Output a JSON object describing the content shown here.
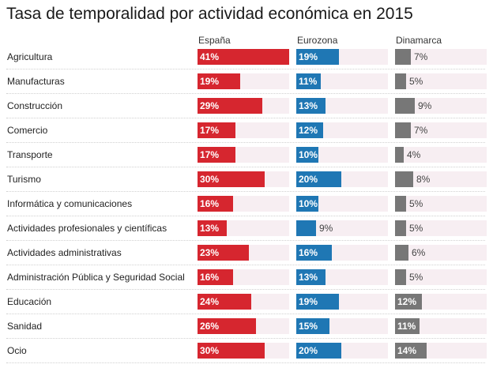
{
  "title": "Tasa de temporalidad por actividad económica en 2015",
  "chart_data": {
    "type": "bar",
    "title": "Tasa de temporalidad por actividad económica en 2015",
    "unit": "%",
    "xlim": [
      0,
      41
    ],
    "categories": [
      "Agricultura",
      "Manufacturas",
      "Construcción",
      "Comercio",
      "Transporte",
      "Turismo",
      "Informática y comunicaciones",
      "Actividades profesionales y científicas",
      "Actividades administrativas",
      "Administración Pública y Seguridad Social",
      "Educación",
      "Sanidad",
      "Ocio"
    ],
    "series": [
      {
        "name": "España",
        "color": "#d6262f",
        "values": [
          41,
          19,
          29,
          17,
          17,
          30,
          16,
          13,
          23,
          16,
          24,
          26,
          30
        ]
      },
      {
        "name": "Eurozona",
        "color": "#1f77b4",
        "values": [
          19,
          11,
          13,
          12,
          10,
          20,
          10,
          9,
          16,
          13,
          19,
          15,
          20
        ]
      },
      {
        "name": "Dinamarca",
        "color": "#777777",
        "values": [
          7,
          5,
          9,
          7,
          4,
          8,
          5,
          5,
          6,
          5,
          12,
          11,
          14
        ]
      }
    ]
  }
}
